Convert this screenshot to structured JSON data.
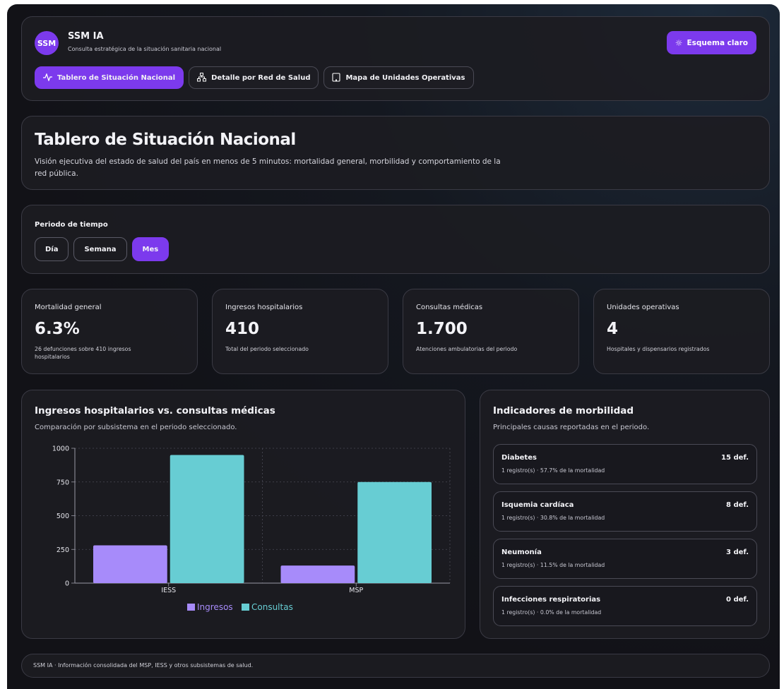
{
  "app": {
    "logo_text": "SSM",
    "name": "SSM IA",
    "subtitle": "Consulta estratégica de la situación sanitaria nacional",
    "theme_button": "Esquema claro",
    "accent": "#7c3aed"
  },
  "nav": {
    "tabs": [
      {
        "label": "Tablero de Situación Nacional",
        "icon": "activity-icon",
        "active": true
      },
      {
        "label": "Detalle por Red de Salud",
        "icon": "network-icon",
        "active": false
      },
      {
        "label": "Mapa de Unidades Operativas",
        "icon": "building-icon",
        "active": false
      }
    ]
  },
  "page": {
    "title": "Tablero de Situación Nacional",
    "description": "Visión ejecutiva del estado de salud del país en menos de 5 minutos: mortalidad general, morbilidad y comportamiento de la red pública."
  },
  "period": {
    "label": "Periodo de tiempo",
    "options": [
      {
        "label": "Día",
        "active": false
      },
      {
        "label": "Semana",
        "active": false
      },
      {
        "label": "Mes",
        "active": true
      }
    ]
  },
  "kpis": [
    {
      "label": "Mortalidad general",
      "value": "6.3%",
      "sub": "26 defunciones sobre 410 ingresos hospitalarios"
    },
    {
      "label": "Ingresos hospitalarios",
      "value": "410",
      "sub": "Total del periodo seleccionado"
    },
    {
      "label": "Consultas médicas",
      "value": "1.700",
      "sub": "Atenciones ambulatorias del periodo"
    },
    {
      "label": "Unidades operativas",
      "value": "4",
      "sub": "Hospitales y dispensarios registrados"
    }
  ],
  "chart_card": {
    "title": "Ingresos hospitalarios vs. consultas médicas",
    "subtitle": "Comparación por subsistema en el periodo seleccionado."
  },
  "chart_data": {
    "type": "bar",
    "categories": [
      "IESS",
      "MSP"
    ],
    "series": [
      {
        "name": "Ingresos",
        "values": [
          280,
          130
        ],
        "color": "#a78bfa"
      },
      {
        "name": "Consultas",
        "values": [
          950,
          750
        ],
        "color": "#67cdd3"
      }
    ],
    "ylim": [
      0,
      1000
    ],
    "yticks": [
      0,
      250,
      500,
      750,
      1000
    ],
    "grid": true,
    "legend": "bottom"
  },
  "morbidity": {
    "title": "Indicadores de morbilidad",
    "subtitle": "Principales causas reportadas en el periodo.",
    "items": [
      {
        "name": "Diabetes",
        "detail": "1 registro(s) · 57.7% de la mortalidad",
        "count": "15 def."
      },
      {
        "name": "Isquemia cardíaca",
        "detail": "1 registro(s) · 30.8% de la mortalidad",
        "count": "8 def."
      },
      {
        "name": "Neumonía",
        "detail": "1 registro(s) · 11.5% de la mortalidad",
        "count": "3 def."
      },
      {
        "name": "Infecciones respiratorias",
        "detail": "1 registro(s) · 0.0% de la mortalidad",
        "count": "0 def."
      }
    ]
  },
  "footer": {
    "text": "SSM IA · Información consolidada del MSP, IESS y otros subsistemas de salud."
  }
}
